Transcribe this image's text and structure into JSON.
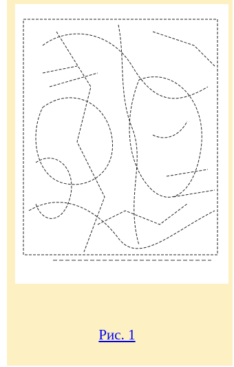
{
  "figure": {
    "caption": "Рис. 1"
  }
}
